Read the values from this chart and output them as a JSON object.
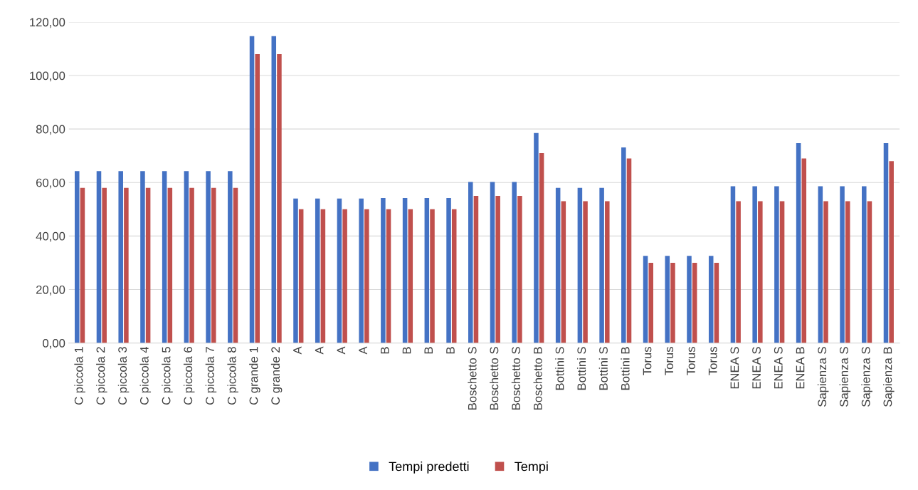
{
  "chart_data": {
    "type": "bar",
    "categories": [
      "C piccola 1",
      "C piccola 2",
      "C piccola 3",
      "C piccola 4",
      "C piccola 5",
      "C piccola 6",
      "C piccola 7",
      "C piccola 8",
      "C grande 1",
      "C grande 2",
      "A",
      "A",
      "A",
      "A",
      "B",
      "B",
      "B",
      "B",
      "Boschetto S",
      "Boschetto S",
      "Boschetto S",
      "Boschetto B",
      "Bottini S",
      "Bottini S",
      "Bottini S",
      "Bottini B",
      "Torus",
      "Torus",
      "Torus",
      "Torus",
      "ENEA S",
      "ENEA S",
      "ENEA S",
      "ENEA B",
      "Sapienza S",
      "Sapienza S",
      "Sapienza S",
      "Sapienza B"
    ],
    "series": [
      {
        "name": "Tempi predetti",
        "color": "#4472c4",
        "values": [
          64.3,
          64.3,
          64.3,
          64.3,
          64.3,
          64.3,
          64.3,
          64.3,
          114.7,
          114.7,
          54,
          54,
          54,
          54,
          54.2,
          54.2,
          54.2,
          54.2,
          60.2,
          60.2,
          60.2,
          78.5,
          58,
          58,
          58,
          73.1,
          32.6,
          32.6,
          32.6,
          32.6,
          58.6,
          58.6,
          58.6,
          74.7,
          58.6,
          58.6,
          58.6,
          74.7
        ]
      },
      {
        "name": "Tempi",
        "color": "#c0504d",
        "values": [
          58,
          58,
          58,
          58,
          58,
          58,
          58,
          58,
          108,
          108,
          50,
          50,
          50,
          50,
          50,
          50,
          50,
          50,
          55,
          55,
          55,
          71,
          53,
          53,
          53,
          69,
          30,
          30,
          30,
          30,
          53,
          53,
          53,
          69,
          53,
          53,
          53,
          68
        ]
      }
    ],
    "ylim": [
      0,
      120
    ],
    "yticks": [
      {
        "value": 0,
        "label": "0,00"
      },
      {
        "value": 20,
        "label": "20,00"
      },
      {
        "value": 40,
        "label": "40,00"
      },
      {
        "value": 60,
        "label": "60,00"
      },
      {
        "value": 80,
        "label": "80,00"
      },
      {
        "value": 100,
        "label": "100,00"
      },
      {
        "value": 120,
        "label": "120,00"
      }
    ],
    "grid": "y",
    "legend": "bottom"
  }
}
